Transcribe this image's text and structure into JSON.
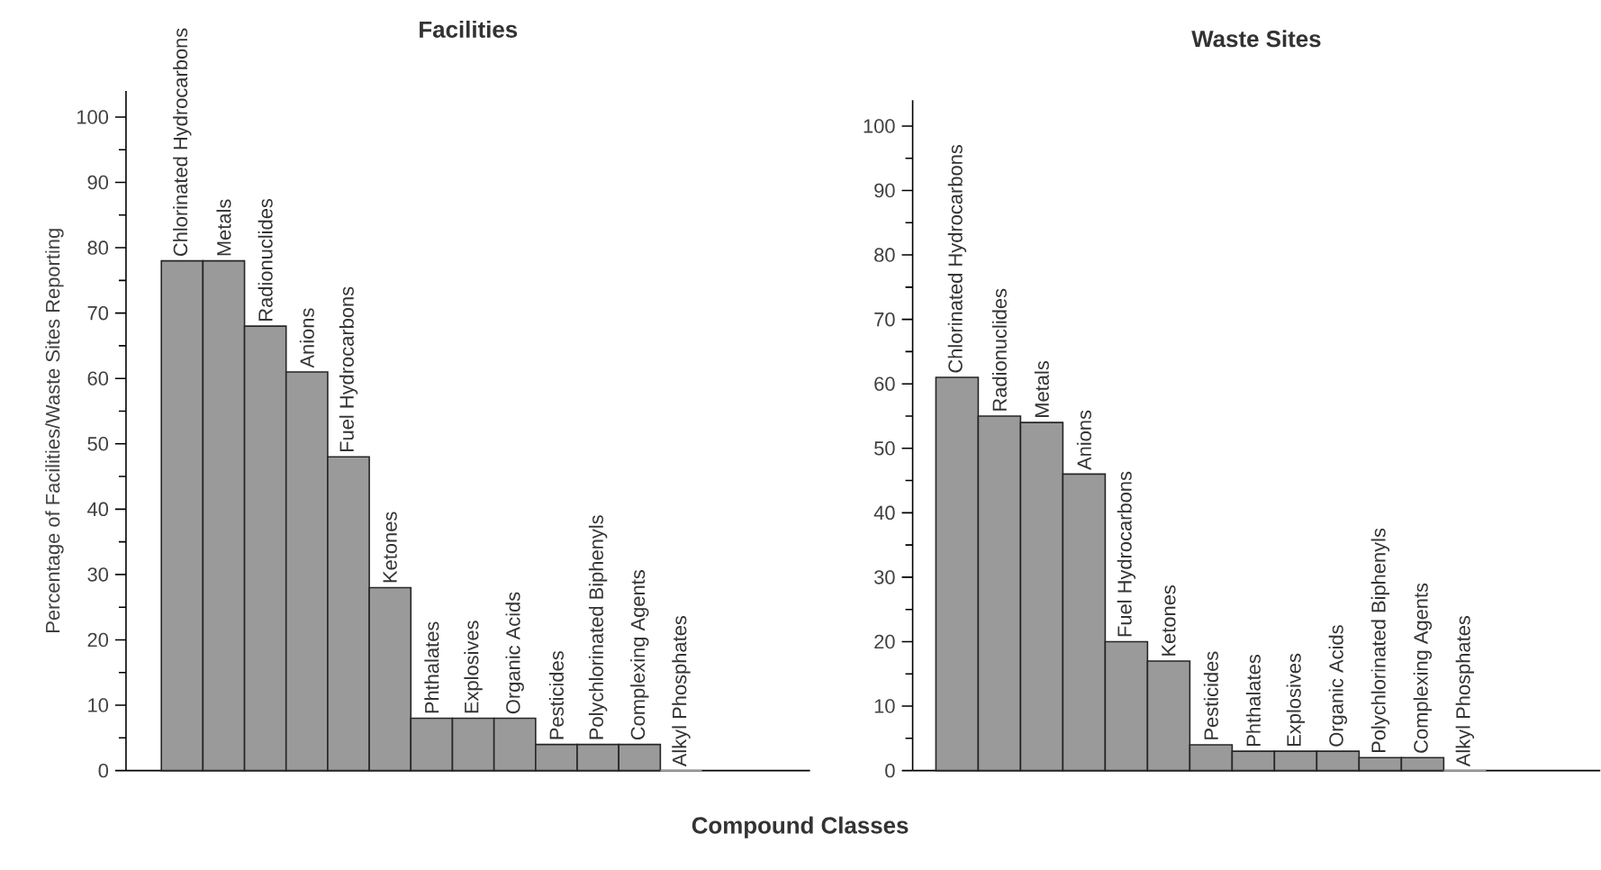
{
  "chart_data": [
    {
      "type": "bar",
      "title": "Facilities",
      "ylabel": "Percentage of Facilities/Waste Sites Reporting",
      "xlabel": "Compound Classes",
      "color": "#9a9a9a",
      "categories": [
        "Chlorinated Hydrocarbons",
        "Metals",
        "Radionuclides",
        "Anions",
        "Fuel Hydrocarbons",
        "Ketones",
        "Phthalates",
        "Explosives",
        "Organic Acids",
        "Pesticides",
        "Polychlorinated Biphenyls",
        "Complexing Agents",
        "Alkyl Phosphates"
      ],
      "values": [
        78,
        78,
        68,
        61,
        48,
        28,
        8,
        8,
        8,
        4,
        4,
        4,
        0
      ],
      "ylim": [
        0,
        104
      ],
      "yticks": [
        0,
        10,
        20,
        30,
        40,
        50,
        60,
        70,
        80,
        90,
        100
      ]
    },
    {
      "type": "bar",
      "title": "Waste Sites",
      "color": "#9a9a9a",
      "categories": [
        "Chlorinated Hydrocarbons",
        "Radionuclides",
        "Metals",
        "Anions",
        "Fuel Hydrocarbons",
        "Ketones",
        "Pesticides",
        "Phthalates",
        "Explosives",
        "Organic Acids",
        "Polychlorinated Biphenyls",
        "Complexing Agents",
        "Alkyl Phosphates"
      ],
      "values": [
        61,
        55,
        54,
        46,
        20,
        17,
        4,
        3,
        3,
        3,
        2,
        2,
        0
      ],
      "ylim": [
        0,
        104
      ],
      "yticks": [
        0,
        10,
        20,
        30,
        40,
        50,
        60,
        70,
        80,
        90,
        100
      ]
    }
  ]
}
